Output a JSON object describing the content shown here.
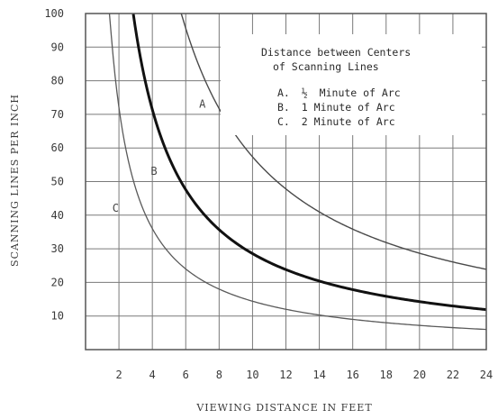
{
  "chart_data": {
    "type": "line",
    "xlabel": "VIEWING DISTANCE IN FEET",
    "ylabel": "SCANNING LINES PER INCH",
    "xlim": [
      0,
      24
    ],
    "ylim": [
      0,
      100
    ],
    "x_ticks": [
      "2",
      "4",
      "6",
      "8",
      "10",
      "12",
      "14",
      "16",
      "18",
      "20",
      "22",
      "24"
    ],
    "y_ticks": [
      "10",
      "20",
      "30",
      "40",
      "50",
      "60",
      "70",
      "80",
      "90",
      "100"
    ],
    "grid": true,
    "legend_title": [
      "Distance between Centers",
      "of Scanning Lines"
    ],
    "legend_entries": [
      {
        "prefix": "A.",
        "fraction": "½",
        "text": "Minute of Arc"
      },
      {
        "prefix": "B.",
        "fraction": "",
        "text": "1 Minute of Arc"
      },
      {
        "prefix": "C.",
        "fraction": "",
        "text": "2 Minute of Arc"
      }
    ],
    "series": [
      {
        "name": "A",
        "arc_minutes": 0.5,
        "color": "#4a4a4a",
        "width": 1.4,
        "label_at": [
          7,
          72
        ],
        "x": [
          5.73,
          6,
          8,
          10,
          12,
          14,
          16,
          18,
          20,
          22,
          24
        ],
        "y": [
          100,
          95.5,
          71.6,
          57.3,
          47.7,
          40.9,
          35.8,
          31.8,
          28.6,
          26.0,
          23.9
        ]
      },
      {
        "name": "B",
        "arc_minutes": 1,
        "color": "#111111",
        "width": 3,
        "label_at": [
          4.1,
          52
        ],
        "x": [
          2.86,
          3,
          4,
          6,
          8,
          10,
          12,
          14,
          16,
          18,
          20,
          22,
          24
        ],
        "y": [
          100,
          95.5,
          71.6,
          47.7,
          35.8,
          28.6,
          23.9,
          20.5,
          17.9,
          15.9,
          14.3,
          13.0,
          11.9
        ]
      },
      {
        "name": "C",
        "arc_minutes": 2,
        "color": "#5a5a5a",
        "width": 1.3,
        "label_at": [
          1.8,
          41
        ],
        "x": [
          1.43,
          2,
          3,
          4,
          6,
          8,
          10,
          12,
          14,
          16,
          18,
          20,
          22,
          24
        ],
        "y": [
          100,
          71.6,
          47.7,
          35.8,
          23.9,
          17.9,
          14.3,
          11.9,
          10.2,
          8.9,
          8.0,
          7.2,
          6.5,
          6.0
        ]
      }
    ]
  }
}
